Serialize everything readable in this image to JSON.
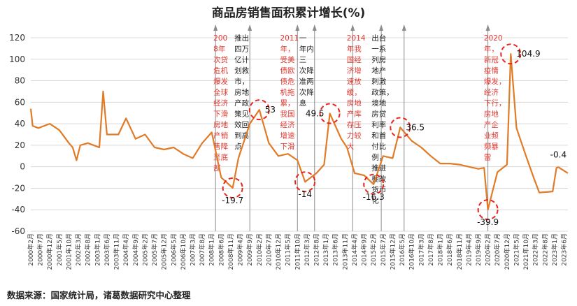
{
  "chart_data": {
    "type": "line",
    "title": "商品房销售面积累计增长(%)",
    "source": "数据来源：国家统计局，诸葛数据研究中心整理",
    "ylim": [
      -60,
      120
    ],
    "yticks": [
      -60,
      -40,
      -20,
      0,
      20,
      40,
      60,
      80,
      100,
      120
    ],
    "x_range": [
      "2000年2月",
      "2023年8月"
    ],
    "x_tick_labels": [
      "2000年2月",
      "2000年7月",
      "2000年12月",
      "2001年5月",
      "2001年10月",
      "2002年3月",
      "2002年8月",
      "2003年1月",
      "2003年6月",
      "2003年11月",
      "2004年4月",
      "2004年9月",
      "2005年2月",
      "2005年7月",
      "2005年12月",
      "2006年5月",
      "2006年10月",
      "2007年3月",
      "2007年8月",
      "2008年1月",
      "2008年6月",
      "2008年11月",
      "2009年4月",
      "2009年9月",
      "2010年2月",
      "2010年7月",
      "2010年12月",
      "2011年5月",
      "2011年10月",
      "2012年3月",
      "2012年8月",
      "2013年1月",
      "2013年6月",
      "2013年11月",
      "2014年4月",
      "2014年9月",
      "2015年2月",
      "2015年7月",
      "2015年12月",
      "2016年5月",
      "2016年10月",
      "2017年3月",
      "2017年8月",
      "2018年1月",
      "2018年6月",
      "2018年11月",
      "2019年4月",
      "2019年9月",
      "2020年2月",
      "2020年7月",
      "2020年12月",
      "2021年5月",
      "2021年10月",
      "2022年3月",
      "2022年8月",
      "2023年1月",
      "2023年6月"
    ],
    "series": [
      {
        "name": "商品房销售面积累计增长",
        "color": "#e07b28",
        "anchors": [
          {
            "t": "2000年2月",
            "v": 54
          },
          {
            "t": "2000年3月",
            "v": 38
          },
          {
            "t": "2000年6月",
            "v": 36
          },
          {
            "t": "2000年12月",
            "v": 40
          },
          {
            "t": "2001年5月",
            "v": 34
          },
          {
            "t": "2001年10月",
            "v": 22
          },
          {
            "t": "2001年12月",
            "v": 18
          },
          {
            "t": "2002年2月",
            "v": 6
          },
          {
            "t": "2002年4月",
            "v": 20
          },
          {
            "t": "2002年8月",
            "v": 22
          },
          {
            "t": "2003年2月",
            "v": 18
          },
          {
            "t": "2003年4月",
            "v": 70
          },
          {
            "t": "2003年6月",
            "v": 30
          },
          {
            "t": "2003年12月",
            "v": 30
          },
          {
            "t": "2004年4月",
            "v": 45
          },
          {
            "t": "2004年9月",
            "v": 26
          },
          {
            "t": "2005年2月",
            "v": 30
          },
          {
            "t": "2005年7月",
            "v": 18
          },
          {
            "t": "2005年12月",
            "v": 16
          },
          {
            "t": "2006年5月",
            "v": 18
          },
          {
            "t": "2006年10月",
            "v": 12
          },
          {
            "t": "2007年3月",
            "v": 8
          },
          {
            "t": "2007年8月",
            "v": 22
          },
          {
            "t": "2008年1月",
            "v": 32
          },
          {
            "t": "2008年6月",
            "v": -10
          },
          {
            "t": "2008年12月",
            "v": -19.7
          },
          {
            "t": "2009年3月",
            "v": 8
          },
          {
            "t": "2009年9月",
            "v": 40
          },
          {
            "t": "2010年2月",
            "v": 53
          },
          {
            "t": "2010年7月",
            "v": 22
          },
          {
            "t": "2010年12月",
            "v": 10
          },
          {
            "t": "2011年5月",
            "v": 12
          },
          {
            "t": "2011年10月",
            "v": 6
          },
          {
            "t": "2012年2月",
            "v": -14
          },
          {
            "t": "2012年8月",
            "v": -6
          },
          {
            "t": "2012年12月",
            "v": 2
          },
          {
            "t": "2013年3月",
            "v": 49.5
          },
          {
            "t": "2013年9月",
            "v": 26
          },
          {
            "t": "2013年12月",
            "v": 18
          },
          {
            "t": "2014年4月",
            "v": -6
          },
          {
            "t": "2014年9月",
            "v": -8
          },
          {
            "t": "2015年2月",
            "v": -16.3
          },
          {
            "t": "2015年7月",
            "v": 10
          },
          {
            "t": "2015年12月",
            "v": 8
          },
          {
            "t": "2016年4月",
            "v": 36.5
          },
          {
            "t": "2016年10月",
            "v": 24
          },
          {
            "t": "2017年3月",
            "v": 18
          },
          {
            "t": "2017年8月",
            "v": 10
          },
          {
            "t": "2018年1月",
            "v": 3
          },
          {
            "t": "2018年6月",
            "v": 3
          },
          {
            "t": "2018年11月",
            "v": 2
          },
          {
            "t": "2019年4月",
            "v": 0
          },
          {
            "t": "2019年9月",
            "v": -2
          },
          {
            "t": "2019年12月",
            "v": -1
          },
          {
            "t": "2020年2月",
            "v": -39.9
          },
          {
            "t": "2020年7月",
            "v": -5
          },
          {
            "t": "2020年12月",
            "v": 2
          },
          {
            "t": "2021年2月",
            "v": 104.9
          },
          {
            "t": "2021年5月",
            "v": 36
          },
          {
            "t": "2021年10月",
            "v": 10
          },
          {
            "t": "2022年2月",
            "v": -10
          },
          {
            "t": "2022年5月",
            "v": -24
          },
          {
            "t": "2022年12月",
            "v": -23
          },
          {
            "t": "2023年2月",
            "v": -1
          },
          {
            "t": "2023年3月",
            "v": -0.4
          },
          {
            "t": "2023年8月",
            "v": -6
          }
        ]
      }
    ],
    "value_labels": [
      {
        "t": "2008年12月",
        "v": -19.7,
        "text": "-19.7",
        "side": "below"
      },
      {
        "t": "2010年2月",
        "v": 53,
        "text": "53",
        "side": "right"
      },
      {
        "t": "2012年2月",
        "v": -14,
        "text": "-14",
        "side": "below"
      },
      {
        "t": "2013年3月",
        "v": 49.5,
        "text": "49.5",
        "side": "left"
      },
      {
        "t": "2015年2月",
        "v": -16.3,
        "text": "-16.3",
        "side": "below"
      },
      {
        "t": "2016年4月",
        "v": 36.5,
        "text": "36.5",
        "side": "right"
      },
      {
        "t": "2020年2月",
        "v": -39.9,
        "text": "-39.9",
        "side": "below"
      },
      {
        "t": "2021年2月",
        "v": 104.9,
        "text": "104.9",
        "side": "right"
      },
      {
        "t": "2023年3月",
        "v": -0.4,
        "text": "-0.4",
        "side": "above"
      }
    ],
    "annotations": [
      {
        "color": "red",
        "at": "2008年3月",
        "lines": [
          "200",
          "8年",
          "次贷",
          "危机",
          "爆发",
          "全球",
          "经济",
          "下滑",
          "房地",
          "产销",
          "售降",
          "至底",
          "部"
        ]
      },
      {
        "color": "dark",
        "at": "2009年2月",
        "lines": [
          "推出",
          "四万",
          "亿计",
          "划救",
          "市，",
          "房地",
          "产政",
          "策见",
          "效回",
          "到高",
          "点"
        ]
      },
      {
        "color": "red",
        "at": "2011年2月",
        "lines": [
          "2011",
          "年，",
          "受美",
          "债欧",
          "债危",
          "机拖",
          "累，",
          "我国",
          "经济",
          "增速",
          "下滑"
        ]
      },
      {
        "color": "dark",
        "at": "2011年12月",
        "lines": [
          "一",
          "年内",
          "三",
          "次降",
          "准两",
          "次降",
          "息"
        ]
      },
      {
        "color": "red",
        "at": "2014年1月",
        "lines": [
          "2014",
          "年我",
          "国经",
          "济增",
          "速放",
          "缓，",
          "房地",
          "产库",
          "存压",
          "力较",
          "大"
        ]
      },
      {
        "color": "dark",
        "at": "2015年2月",
        "lines": [
          "出台",
          "一系",
          "列房",
          "地产",
          "刺激",
          "政策，",
          "境地",
          "房贷",
          "利率",
          "和首",
          "付比",
          "例，",
          "推进",
          "棚改",
          "货币",
          "化"
        ]
      },
      {
        "color": "red",
        "at": "2020年1月",
        "lines": [
          "2020",
          "年，",
          "新冠",
          "疫情",
          "爆发，",
          "经济",
          "下行，",
          "房地",
          "产企",
          "业频",
          "频暴",
          "雷"
        ]
      }
    ],
    "arrows_at": [
      "2008年3月",
      "2009年9月",
      "2011年10月",
      "2012年7月",
      "2014年3月",
      "2015年6月",
      "2016年6月",
      "2020年2月"
    ],
    "highlight_circles_at": [
      "2008年12月",
      "2010年2月",
      "2012年2月",
      "2013年3月",
      "2015年2月",
      "2016年4月",
      "2020年2月",
      "2021年2月"
    ]
  }
}
